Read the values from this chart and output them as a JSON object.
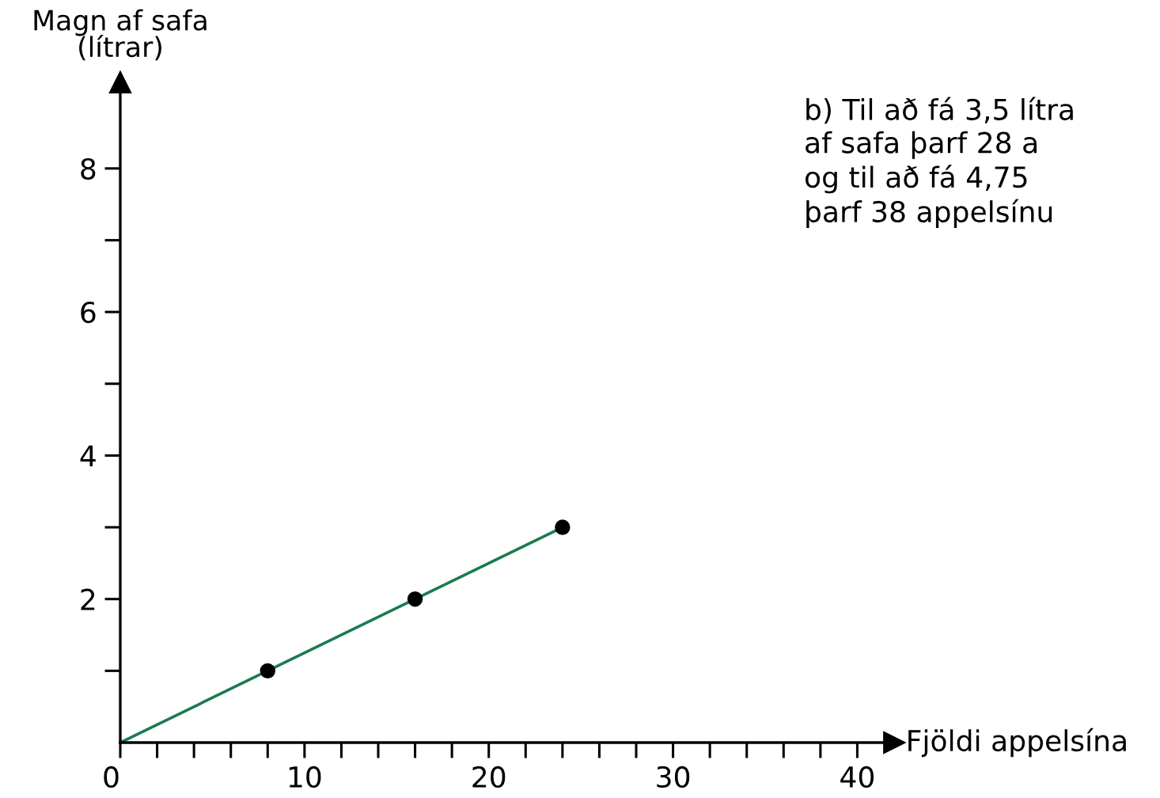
{
  "chart_data": {
    "type": "line",
    "xlabel": "Fjöldi appelsína",
    "ylabel": "Magn af safa\n(lítrar)",
    "series": [
      {
        "color": "#1b7a4f",
        "x": [
          0,
          24
        ],
        "values": [
          0,
          3
        ]
      },
      {
        "type": "scatter",
        "marker": "circle",
        "color": "#000000",
        "x": [
          8,
          16,
          24
        ],
        "values": [
          1,
          2,
          3
        ]
      }
    ],
    "xlim": [
      0,
      42
    ],
    "ylim": [
      0,
      9.2
    ],
    "xticks": [
      0,
      {
        "value": 2,
        "label": null
      },
      {
        "value": 4,
        "label": null
      },
      {
        "value": 6,
        "label": null
      },
      {
        "value": 8,
        "label": null
      },
      10,
      {
        "value": 12,
        "label": null
      },
      {
        "value": 14,
        "label": null
      },
      {
        "value": 16,
        "label": null
      },
      {
        "value": 18,
        "label": null
      },
      20,
      {
        "value": 22,
        "label": null
      },
      {
        "value": 24,
        "label": null
      },
      {
        "value": 26,
        "label": null
      },
      {
        "value": 28,
        "label": null
      },
      30,
      {
        "value": 32,
        "label": null
      },
      {
        "value": 34,
        "label": null
      },
      {
        "value": 36,
        "label": null
      },
      {
        "value": 38,
        "label": null
      },
      40
    ],
    "yticks": [
      {
        "value": 1,
        "label": null
      },
      2,
      {
        "value": 3,
        "label": null
      },
      4,
      {
        "value": 5,
        "label": null
      },
      6,
      {
        "value": 7,
        "label": null
      },
      8
    ],
    "grid": false,
    "legend": false,
    "annotations": [
      "b) Til að fá 3,5 lítra\naf safa þarf 28 a\nog til að fá 4,75\nþarf 38 appelsínu"
    ]
  }
}
